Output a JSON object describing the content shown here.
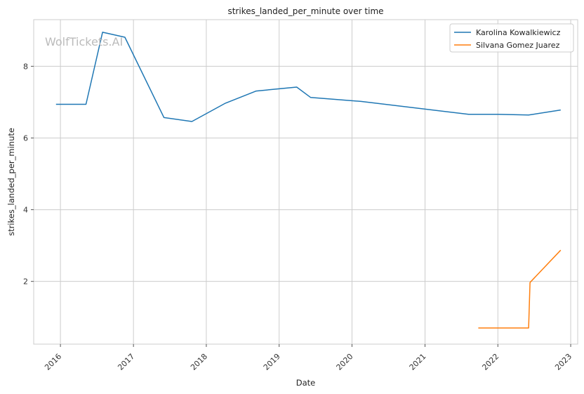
{
  "chart_data": {
    "type": "line",
    "title": "strikes_landed_per_minute over time",
    "xlabel": "Date",
    "ylabel": "strikes_landed_per_minute",
    "watermark": "WolfTickets.AI",
    "x_type": "date",
    "xlim": [
      "2015-08-20",
      "2023-02-05"
    ],
    "ylim": [
      0.25,
      9.3
    ],
    "x_ticks": [
      "2016-01-01",
      "2017-01-01",
      "2018-01-01",
      "2019-01-01",
      "2020-01-01",
      "2021-01-01",
      "2022-01-01",
      "2023-01-01"
    ],
    "x_tick_labels": [
      "2016",
      "2017",
      "2018",
      "2019",
      "2020",
      "2021",
      "2022",
      "2023"
    ],
    "y_ticks": [
      2,
      4,
      6,
      8
    ],
    "y_tick_labels": [
      "2",
      "4",
      "6",
      "8"
    ],
    "grid": true,
    "legend_position": "top-right",
    "series": [
      {
        "name": "Karolina Kowalkiewicz",
        "color": "#1f77b4",
        "points": [
          {
            "x": "2015-12-10",
            "y": 6.94
          },
          {
            "x": "2016-05-08",
            "y": 6.94
          },
          {
            "x": "2016-07-30",
            "y": 8.95
          },
          {
            "x": "2016-11-19",
            "y": 8.81
          },
          {
            "x": "2017-06-03",
            "y": 6.57
          },
          {
            "x": "2017-10-21",
            "y": 6.46
          },
          {
            "x": "2018-04-07",
            "y": 6.97
          },
          {
            "x": "2018-09-08",
            "y": 7.31
          },
          {
            "x": "2019-03-30",
            "y": 7.42
          },
          {
            "x": "2019-06-08",
            "y": 7.13
          },
          {
            "x": "2020-02-15",
            "y": 7.02
          },
          {
            "x": "2021-08-07",
            "y": 6.66
          },
          {
            "x": "2022-01-01",
            "y": 6.66
          },
          {
            "x": "2022-06-04",
            "y": 6.64
          },
          {
            "x": "2022-11-12",
            "y": 6.78
          }
        ]
      },
      {
        "name": "Silvana Gomez Juarez",
        "color": "#ff7f0e",
        "points": [
          {
            "x": "2021-09-25",
            "y": 0.7
          },
          {
            "x": "2022-06-04",
            "y": 0.7
          },
          {
            "x": "2022-06-11",
            "y": 1.97
          },
          {
            "x": "2022-11-12",
            "y": 2.87
          }
        ]
      }
    ]
  }
}
